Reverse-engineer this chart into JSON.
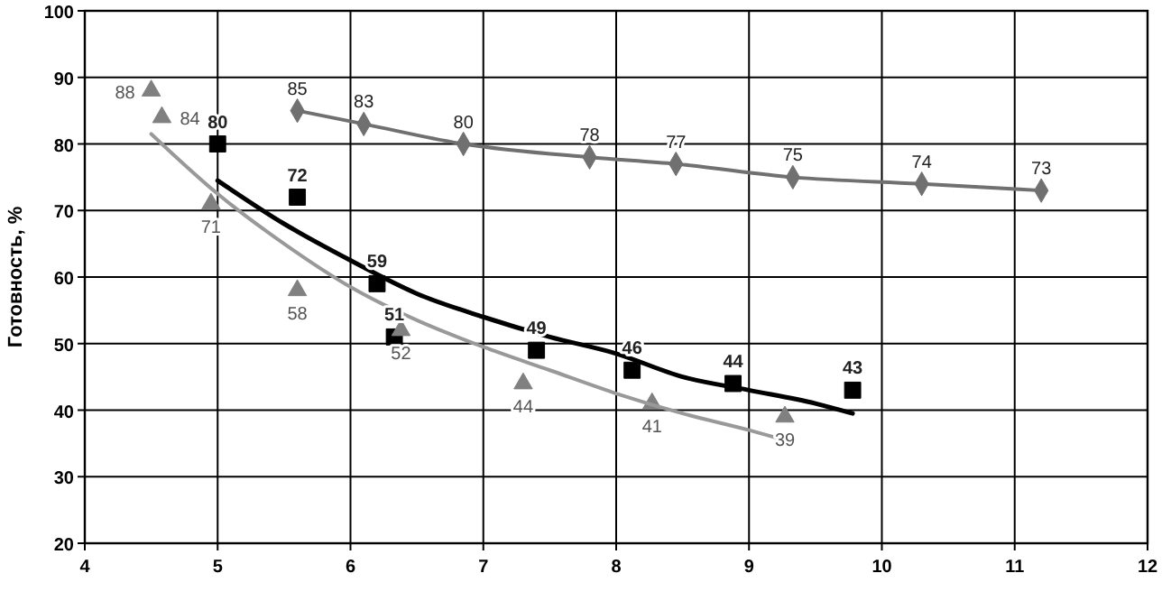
{
  "chart_data": {
    "type": "scatter",
    "ylabel": "Готовность, %",
    "xlim": [
      4,
      12
    ],
    "ylim": [
      20,
      100
    ],
    "xticks": [
      4,
      5,
      6,
      7,
      8,
      9,
      10,
      11,
      12
    ],
    "yticks": [
      20,
      30,
      40,
      50,
      60,
      70,
      80,
      90,
      100
    ],
    "grid": true,
    "series": [
      {
        "type": "line",
        "marker": "diamond",
        "color": "#707070",
        "x": [
          5.6,
          6.1,
          6.85,
          7.8,
          8.45,
          9.33,
          10.3,
          11.2
        ],
        "values": [
          85,
          83,
          80,
          78,
          77,
          75,
          74,
          73
        ],
        "value_labels": [
          "85",
          "83",
          "80",
          "78",
          "77",
          "75",
          "74",
          "73"
        ]
      },
      {
        "type": "scatter",
        "marker": "square",
        "color": "#000000",
        "x": [
          5.0,
          5.6,
          6.2,
          6.33,
          7.4,
          8.12,
          8.88,
          9.78
        ],
        "values": [
          80,
          72,
          59,
          51,
          49,
          46,
          44,
          43
        ],
        "value_labels": [
          "80",
          "72",
          "59",
          "51",
          "49",
          "46",
          "44",
          "43"
        ]
      },
      {
        "type": "scatter",
        "marker": "triangle",
        "color": "#808080",
        "x": [
          4.5,
          4.58,
          4.95,
          5.6,
          6.38,
          7.3,
          8.27,
          9.27
        ],
        "values": [
          88,
          84,
          71,
          58,
          52,
          44,
          41,
          39
        ],
        "value_labels": [
          "88",
          "84",
          "71",
          "58",
          "52",
          "44",
          "41",
          "39"
        ]
      },
      {
        "type": "line",
        "marker": "none",
        "color": "#000000",
        "x": [
          5,
          5.5,
          6,
          6.5,
          7,
          7.5,
          8,
          8.5,
          9,
          9.5,
          9.78
        ],
        "values": [
          74.5,
          68,
          62.5,
          57.5,
          54,
          51,
          48.5,
          45,
          43,
          41,
          39.5
        ]
      },
      {
        "type": "line",
        "marker": "none",
        "color": "#999999",
        "x": [
          4.5,
          5,
          5.5,
          6,
          6.5,
          7,
          7.5,
          8,
          8.5,
          9,
          9.27
        ],
        "values": [
          81.5,
          72.5,
          65,
          58.5,
          53.5,
          49.5,
          46,
          42.5,
          39.5,
          37,
          35.5
        ]
      }
    ]
  }
}
